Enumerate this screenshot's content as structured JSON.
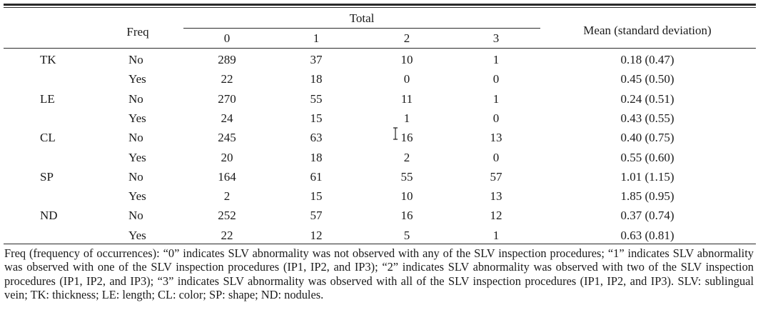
{
  "header": {
    "freq": "Freq",
    "total": "Total",
    "levels": [
      "0",
      "1",
      "2",
      "3"
    ],
    "mean": "Mean (standard deviation)"
  },
  "rows": [
    {
      "label": "TK",
      "freq": "No",
      "v0": "289",
      "v1": "37",
      "v2": "10",
      "v3": "1",
      "mean": "0.18 (0.47)"
    },
    {
      "label": "",
      "freq": "Yes",
      "v0": "22",
      "v1": "18",
      "v2": "0",
      "v3": "0",
      "mean": "0.45 (0.50)"
    },
    {
      "label": "LE",
      "freq": "No",
      "v0": "270",
      "v1": "55",
      "v2": "11",
      "v3": "1",
      "mean": "0.24 (0.51)"
    },
    {
      "label": "",
      "freq": "Yes",
      "v0": "24",
      "v1": "15",
      "v2": "1",
      "v3": "0",
      "mean": "0.43 (0.55)"
    },
    {
      "label": "CL",
      "freq": "No",
      "v0": "245",
      "v1": "63",
      "v2": "16",
      "v3": "13",
      "mean": "0.40 (0.75)"
    },
    {
      "label": "",
      "freq": "Yes",
      "v0": "20",
      "v1": "18",
      "v2": "2",
      "v3": "0",
      "mean": "0.55 (0.60)"
    },
    {
      "label": "SP",
      "freq": "No",
      "v0": "164",
      "v1": "61",
      "v2": "55",
      "v3": "57",
      "mean": "1.01 (1.15)"
    },
    {
      "label": "",
      "freq": "Yes",
      "v0": "2",
      "v1": "15",
      "v2": "10",
      "v3": "13",
      "mean": "1.85 (0.95)"
    },
    {
      "label": "ND",
      "freq": "No",
      "v0": "252",
      "v1": "57",
      "v2": "16",
      "v3": "12",
      "mean": "0.37 (0.74)"
    },
    {
      "label": "",
      "freq": "Yes",
      "v0": "22",
      "v1": "12",
      "v2": "5",
      "v3": "1",
      "mean": "0.63 (0.81)"
    }
  ],
  "footnote": "Freq (frequency of occurrences): “0” indicates SLV abnormality was not observed with any of the SLV inspection procedures; “1” indicates SLV abnormality was observed with one of the SLV inspection procedures (IP1, IP2, and IP3); “2” indicates SLV abnormality was observed with two of the SLV inspection procedures (IP1, IP2, and IP3); “3” indicates SLV abnormality was observed with all of the SLV inspection procedures (IP1, IP2, and IP3). SLV: sublingual vein; TK: thickness; LE: length; CL: color; SP: shape; ND: nodules.",
  "cursor_icon": "text-cursor-icon"
}
